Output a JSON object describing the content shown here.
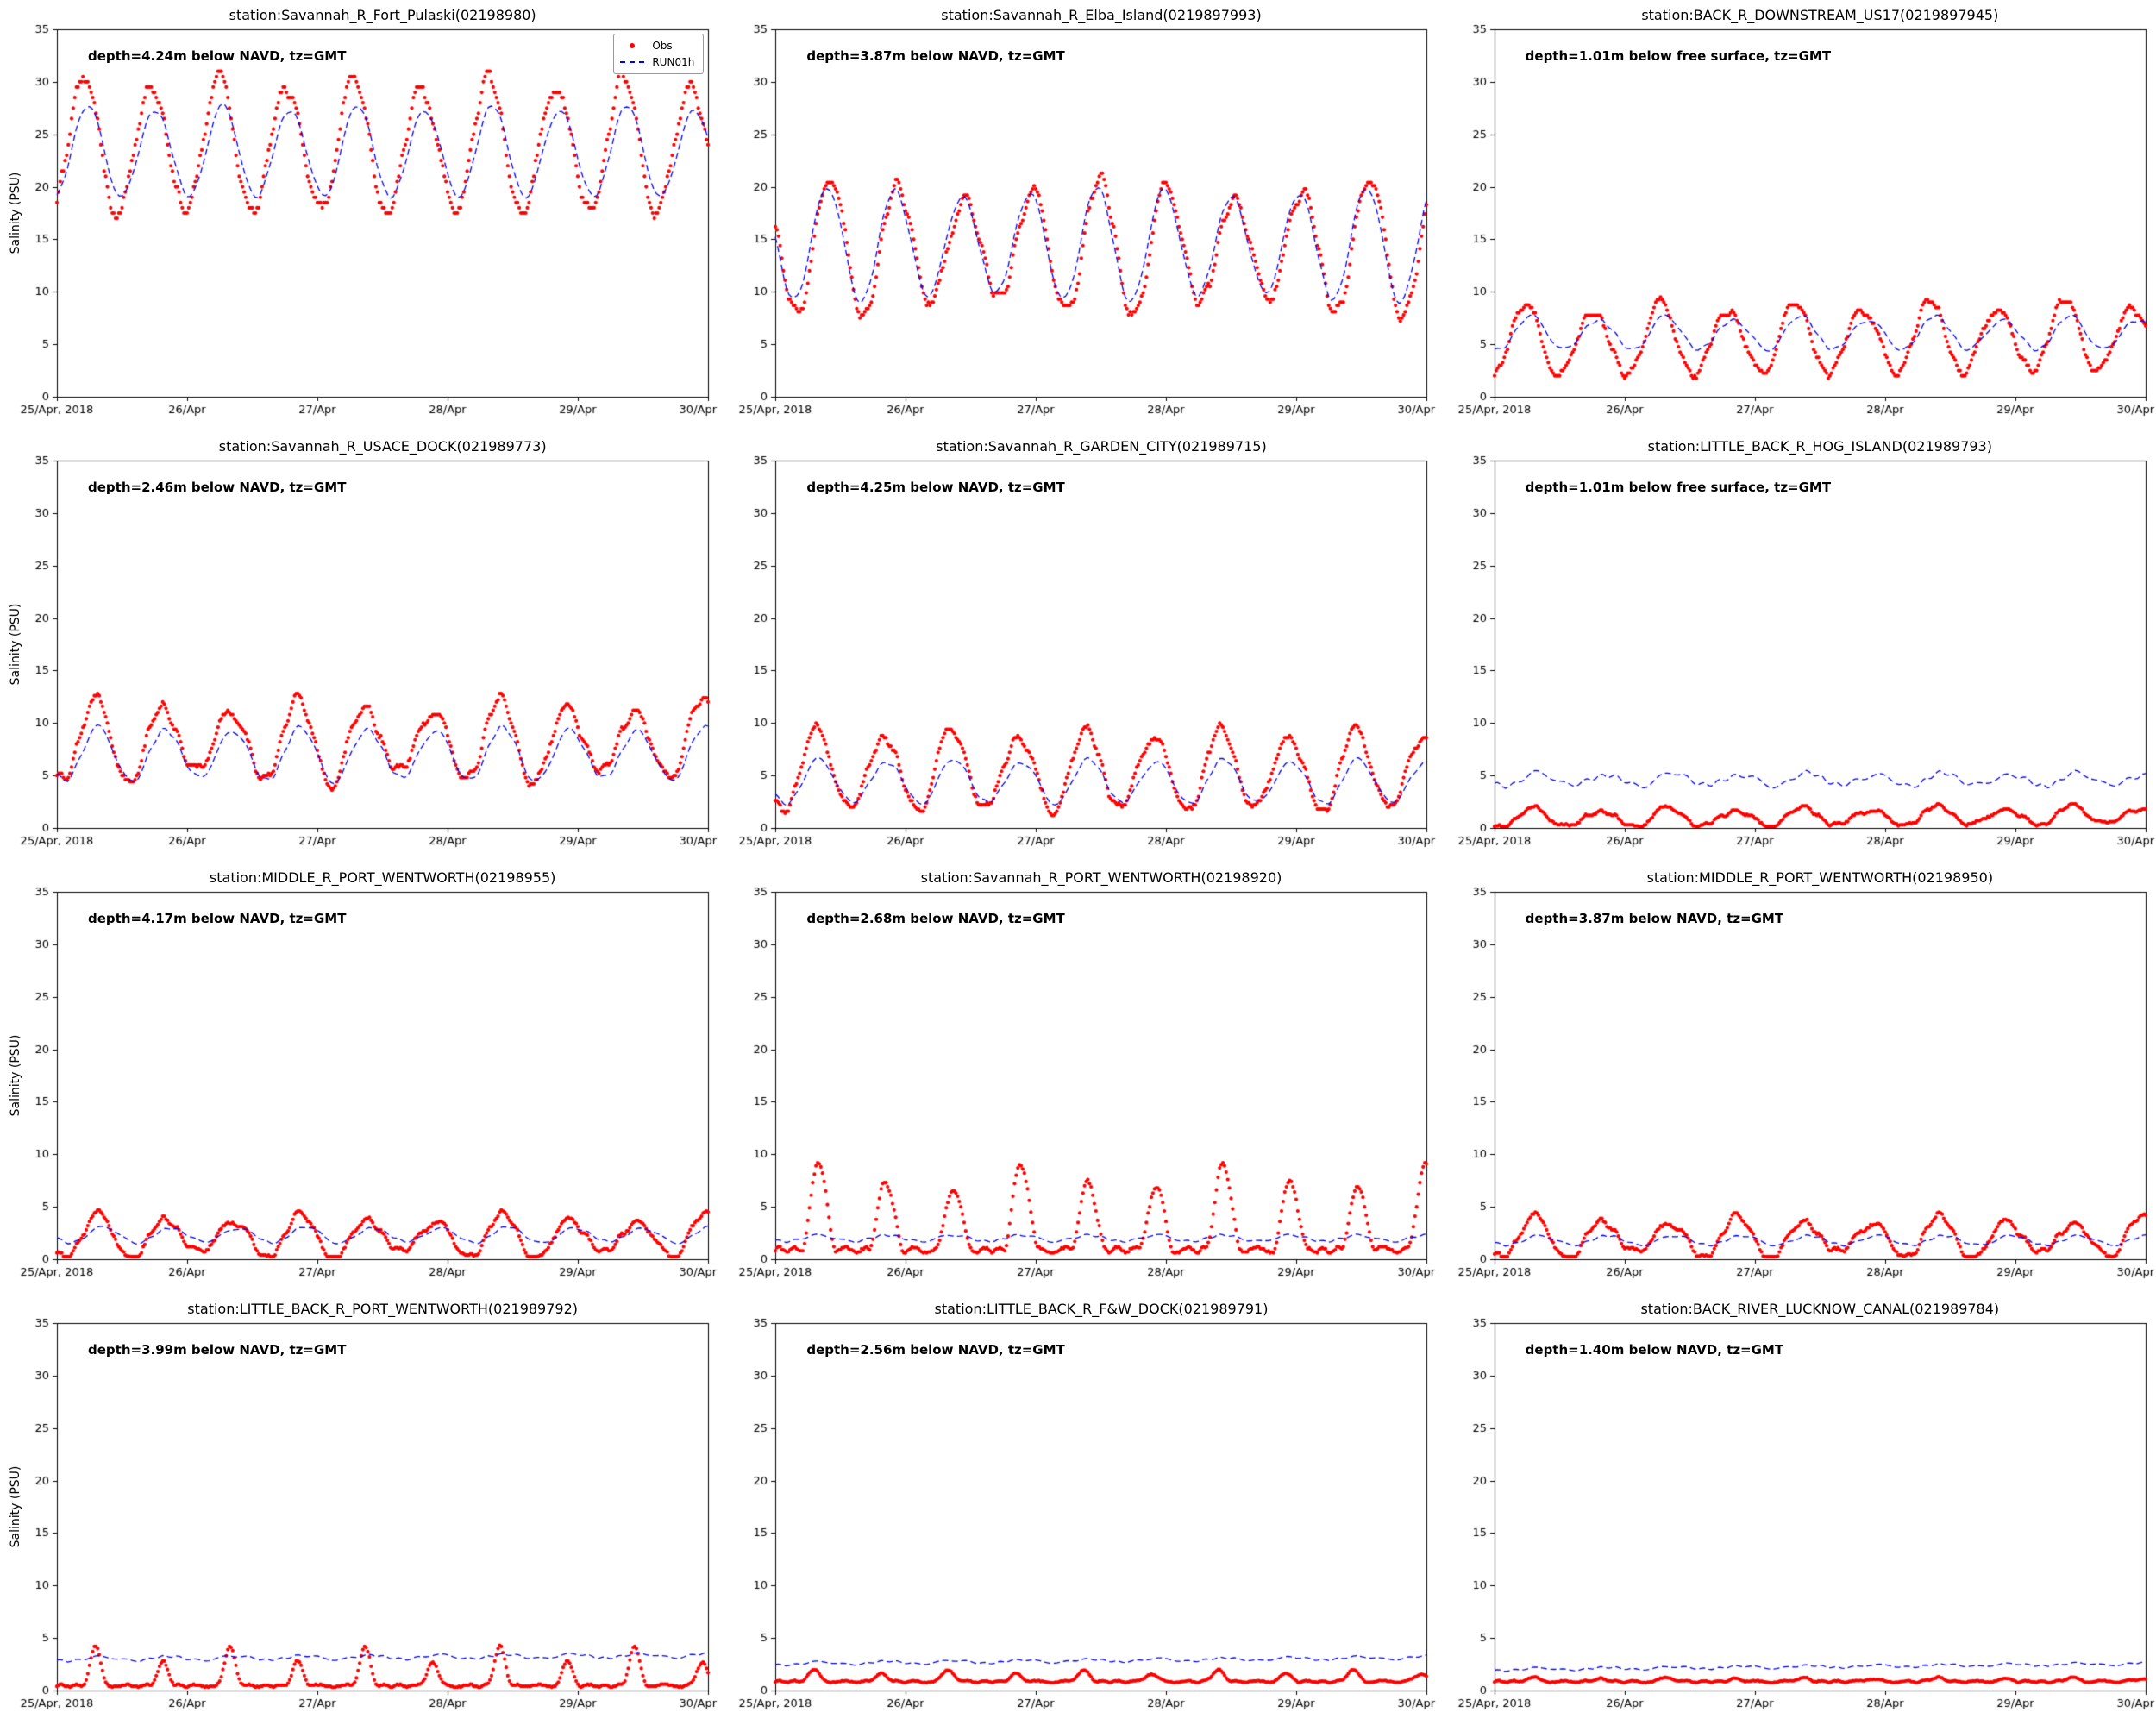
{
  "figure": {
    "background": "#ffffff",
    "ylabel": "Salinity (PSU)",
    "x_tick_labels": [
      "25/Apr, 2018",
      "26/Apr",
      "27/Apr",
      "28/Apr",
      "29/Apr",
      "30/Apr"
    ],
    "x_tick_hours": [
      0,
      24,
      48,
      72,
      96,
      120
    ],
    "x_range_hours": [
      0,
      120
    ],
    "y_ticks": [
      0,
      5,
      10,
      15,
      20,
      25,
      30,
      35
    ],
    "colors": {
      "obs": "#ff0000",
      "model": "#0000ee",
      "frame": "#000000"
    },
    "legend": {
      "obs_label": "Obs",
      "model_label": "RUN01h"
    }
  },
  "chart_data": [
    {
      "type": "scatter+line",
      "title": "station:Savannah_R_Fort_Pulaski(02198980)",
      "annotation": "depth=4.24m below NAVD, tz=GMT",
      "ylim": [
        0,
        35
      ],
      "show_legend": true,
      "series": [
        {
          "name": "Obs",
          "style": "dots",
          "color": "#ff0000",
          "base": 23.8,
          "amp": 6.2,
          "period_h": 12.42,
          "phase_h": 1.9,
          "amp_mod": 0.1,
          "mod_period_h": 24.84,
          "noise": 0.45,
          "jitter": 0.3,
          "quant": 0.5
        },
        {
          "name": "RUN01h",
          "style": "dashed",
          "color": "#0000ee",
          "base": 23.3,
          "amp": 4.2,
          "period_h": 12.42,
          "phase_h": 2.6,
          "amp_mod": 0.06,
          "mod_period_h": 24.84,
          "noise": 0.15
        }
      ]
    },
    {
      "type": "scatter+line",
      "title": "station:Savannah_R_Elba_Island(0219897993)",
      "annotation": "depth=3.87m below NAVD, tz=GMT",
      "ylim": [
        0,
        35
      ],
      "show_legend": false,
      "series": [
        {
          "name": "Obs",
          "style": "dots",
          "color": "#ff0000",
          "base": 14.2,
          "amp": 5.6,
          "period_h": 12.42,
          "phase_h": 7.0,
          "amp_mod": 0.2,
          "mod_period_h": 49.7,
          "noise": 0.5,
          "jitter": 0.3,
          "quant": 0.3
        },
        {
          "name": "RUN01h",
          "style": "dashed",
          "color": "#0000ee",
          "base": 14.5,
          "amp": 5.0,
          "period_h": 12.42,
          "phase_h": 6.5,
          "amp_mod": 0.1,
          "mod_period_h": 49.7,
          "noise": 0.2
        }
      ]
    },
    {
      "type": "scatter+line",
      "title": "station:BACK_R_DOWNSTREAM_US17(0219897945)",
      "annotation": "depth=1.01m below free surface, tz=GMT",
      "ylim": [
        0,
        35
      ],
      "show_legend": false,
      "series": [
        {
          "name": "Obs",
          "style": "dots",
          "color": "#ff0000",
          "base": 5.2,
          "amp": 3.2,
          "period_h": 12.42,
          "phase_h": 2.6,
          "amp_mod": 0.15,
          "mod_period_h": 24.84,
          "noise": 0.3,
          "jitter": 0.25,
          "quant": 0.25,
          "trend": 0.5,
          "min_clip": 0.3
        },
        {
          "name": "RUN01h",
          "style": "dashed",
          "color": "#0000ee",
          "base": 6.0,
          "amp": 1.5,
          "period_h": 12.42,
          "phase_h": 3.6,
          "amp_mod": 0.15,
          "mod_period_h": 24.84,
          "noise": 0.15
        }
      ]
    },
    {
      "type": "scatter+line",
      "title": "station:Savannah_R_USACE_DOCK(021989773)",
      "annotation": "depth=2.46m below NAVD, tz=GMT",
      "ylim": [
        0,
        35
      ],
      "show_legend": false,
      "series": [
        {
          "name": "Obs",
          "style": "dots",
          "color": "#ff0000",
          "base": 8.2,
          "amp": 3.4,
          "period_h": 12.42,
          "phase_h": 4.0,
          "amp_mod": 0.25,
          "mod_period_h": 37.3,
          "noise": 0.4,
          "jitter": 0.3,
          "quant": 0.2
        },
        {
          "name": "RUN01h",
          "style": "dashed",
          "color": "#0000ee",
          "base": 7.0,
          "amp": 2.4,
          "period_h": 12.42,
          "phase_h": 4.5,
          "amp_mod": 0.1,
          "mod_period_h": 37.3,
          "noise": 0.2
        }
      ]
    },
    {
      "type": "scatter+line",
      "title": "station:Savannah_R_GARDEN_CITY(021989715)",
      "annotation": "depth=4.25m below NAVD, tz=GMT",
      "ylim": [
        0,
        35
      ],
      "show_legend": false,
      "series": [
        {
          "name": "Obs",
          "style": "dots",
          "color": "#ff0000",
          "base": 5.4,
          "amp": 3.6,
          "period_h": 12.42,
          "phase_h": 4.5,
          "amp_mod": 0.15,
          "mod_period_h": 24.84,
          "noise": 0.3,
          "jitter": 0.3,
          "quant": 0.2,
          "min_clip": 0.4
        },
        {
          "name": "RUN01h",
          "style": "dashed",
          "color": "#0000ee",
          "base": 4.4,
          "amp": 2.0,
          "period_h": 12.42,
          "phase_h": 5.0,
          "amp_mod": 0.1,
          "mod_period_h": 24.84,
          "noise": 0.15
        }
      ]
    },
    {
      "type": "scatter+line",
      "title": "station:LITTLE_BACK_R_HOG_ISLAND(021989793)",
      "annotation": "depth=1.01m below free surface, tz=GMT",
      "ylim": [
        0,
        35
      ],
      "show_legend": false,
      "series": [
        {
          "name": "Obs",
          "style": "dots",
          "color": "#ff0000",
          "base": 0.9,
          "amp": 0.8,
          "period_h": 12.42,
          "phase_h": 4.0,
          "amp_mod": 0.3,
          "mod_period_h": 24.84,
          "noise": 0.15,
          "jitter": 0.15,
          "quant": 0.1,
          "min_clip": 0.15,
          "trend": 0.3
        },
        {
          "name": "RUN01h",
          "style": "dashed",
          "color": "#0000ee",
          "base": 4.6,
          "amp": 0.55,
          "period_h": 12.42,
          "phase_h": 5.0,
          "amp_mod": 0.3,
          "mod_period_h": 24.84,
          "noise": 0.2
        }
      ]
    },
    {
      "type": "scatter+line",
      "title": "station:MIDDLE_R_PORT_WENTWORTH(02198955)",
      "annotation": "depth=4.17m below NAVD, tz=GMT",
      "ylim": [
        0,
        35
      ],
      "show_legend": false,
      "series": [
        {
          "name": "Obs",
          "style": "dots",
          "color": "#ff0000",
          "base": 2.1,
          "amp": 1.8,
          "period_h": 12.42,
          "phase_h": 4.5,
          "amp_mod": 0.3,
          "mod_period_h": 37.3,
          "noise": 0.25,
          "jitter": 0.2,
          "quant": 0.1,
          "min_clip": 0.25
        },
        {
          "name": "RUN01h",
          "style": "dashed",
          "color": "#0000ee",
          "base": 2.3,
          "amp": 0.7,
          "period_h": 12.42,
          "phase_h": 5.5,
          "amp_mod": 0.15,
          "mod_period_h": 37.3,
          "noise": 0.1
        }
      ]
    },
    {
      "type": "scatter+line",
      "title": "station:Savannah_R_PORT_WENTWORTH(02198920)",
      "annotation": "depth=2.68m below NAVD, tz=GMT",
      "ylim": [
        0,
        35
      ],
      "show_legend": false,
      "series": [
        {
          "name": "Obs",
          "style": "dots",
          "color": "#ff0000",
          "shape": "spike",
          "exp": 1.6,
          "base": 0.9,
          "amp": 6.8,
          "period_h": 12.42,
          "phase_h": 4.9,
          "amp_mod": 0.2,
          "mod_period_h": 37.3,
          "noise": 0.25,
          "jitter": 0.2,
          "quant": 0.1,
          "min_clip": 0.3
        },
        {
          "name": "RUN01h",
          "style": "dashed",
          "color": "#0000ee",
          "base": 2.0,
          "amp": 0.3,
          "period_h": 12.42,
          "phase_h": 5.0,
          "noise": 0.1
        }
      ]
    },
    {
      "type": "scatter+line",
      "title": "station:MIDDLE_R_PORT_WENTWORTH(02198950)",
      "annotation": "depth=3.87m below NAVD, tz=GMT",
      "ylim": [
        0,
        35
      ],
      "show_legend": false,
      "series": [
        {
          "name": "Obs",
          "style": "dots",
          "color": "#ff0000",
          "base": 2.0,
          "amp": 1.7,
          "period_h": 12.42,
          "phase_h": 4.3,
          "amp_mod": 0.3,
          "mod_period_h": 37.3,
          "noise": 0.25,
          "jitter": 0.2,
          "quant": 0.1,
          "min_clip": 0.25
        },
        {
          "name": "RUN01h",
          "style": "dashed",
          "color": "#0000ee",
          "base": 1.8,
          "amp": 0.45,
          "period_h": 12.42,
          "phase_h": 5.3,
          "noise": 0.1
        }
      ]
    },
    {
      "type": "scatter+line",
      "title": "station:LITTLE_BACK_R_PORT_WENTWORTH(021989792)",
      "annotation": "depth=3.99m below NAVD, tz=GMT",
      "ylim": [
        0,
        35
      ],
      "show_legend": false,
      "series": [
        {
          "name": "Obs",
          "style": "dots",
          "color": "#ff0000",
          "shape": "spike",
          "exp": 4,
          "base": 0.45,
          "amp": 3.0,
          "period_h": 12.42,
          "phase_h": 4.0,
          "amp_mod": 0.25,
          "mod_period_h": 24.84,
          "noise": 0.1,
          "jitter": 0.1,
          "quant": 0.1,
          "min_clip": 0.2
        },
        {
          "name": "RUN01h",
          "style": "dashed",
          "color": "#0000ee",
          "base": 3.0,
          "amp": 0.2,
          "period_h": 12.42,
          "phase_h": 5.0,
          "noise": 0.1,
          "trend": 0.35
        }
      ]
    },
    {
      "type": "scatter+line",
      "title": "station:LITTLE_BACK_R_F&W_DOCK(021989791)",
      "annotation": "depth=2.56m below NAVD, tz=GMT",
      "ylim": [
        0,
        35
      ],
      "show_legend": false,
      "series": [
        {
          "name": "Obs",
          "style": "dots",
          "color": "#ff0000",
          "shape": "spike",
          "exp": 3,
          "base": 0.85,
          "amp": 0.9,
          "period_h": 12.42,
          "phase_h": 4.0,
          "amp_mod": 0.2,
          "mod_period_h": 24.84,
          "noise": 0.08,
          "jitter": 0.08,
          "min_clip": 0.3
        },
        {
          "name": "RUN01h",
          "style": "dashed",
          "color": "#0000ee",
          "base": 2.55,
          "amp": 0.15,
          "period_h": 12.42,
          "phase_h": 5.0,
          "noise": 0.08,
          "trend": 0.6
        }
      ]
    },
    {
      "type": "scatter+line",
      "title": "station:BACK_RIVER_LUCKNOW_CANAL(021989784)",
      "annotation": "depth=1.40m below NAVD, tz=GMT",
      "ylim": [
        0,
        35
      ],
      "show_legend": false,
      "series": [
        {
          "name": "Obs",
          "style": "dots",
          "color": "#ff0000",
          "shape": "spike",
          "exp": 2,
          "base": 0.85,
          "amp": 0.3,
          "period_h": 12.42,
          "phase_h": 4.0,
          "amp_mod": 0.2,
          "mod_period_h": 24.84,
          "noise": 0.08,
          "jitter": 0.08,
          "min_clip": 0.3
        },
        {
          "name": "RUN01h",
          "style": "dashed",
          "color": "#0000ee",
          "base": 2.0,
          "amp": 0.12,
          "period_h": 12.42,
          "phase_h": 5.0,
          "noise": 0.08,
          "trend": 0.55
        }
      ]
    }
  ]
}
